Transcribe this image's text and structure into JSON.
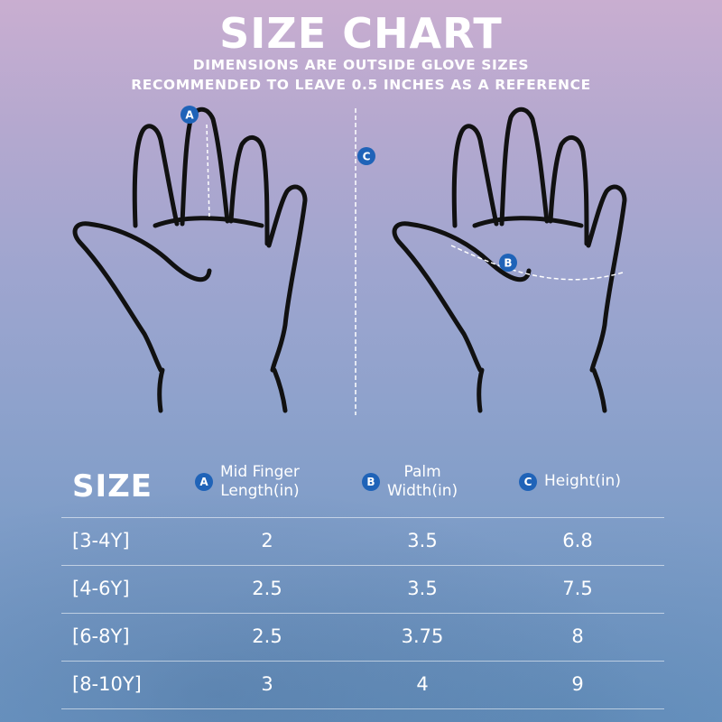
{
  "header": {
    "title": "SIZE CHART",
    "subtitle_line1": "DIMENSIONS ARE OUTSIDE GLOVE SIZES",
    "subtitle_line2": "RECOMMENDED TO LEAVE 0.5 INCHES AS A REFERENCE"
  },
  "illustration": {
    "badge_a": "A",
    "badge_b": "B",
    "badge_c": "C",
    "badge_color": "#1f63b8"
  },
  "table": {
    "size_header": "SIZE",
    "col_a_badge": "A",
    "col_a_line1": "Mid Finger",
    "col_a_line2": "Length(in)",
    "col_b_badge": "B",
    "col_b_line1": "Palm",
    "col_b_line2": "Width(in)",
    "col_c_badge": "C",
    "col_c_label": "Height(in)",
    "rows": [
      {
        "size": "[3-4Y]",
        "finger": "2",
        "palm": "3.5",
        "height": "6.8"
      },
      {
        "size": "[4-6Y]",
        "finger": "2.5",
        "palm": "3.5",
        "height": "7.5"
      },
      {
        "size": "[6-8Y]",
        "finger": "2.5",
        "palm": "3.75",
        "height": "8"
      },
      {
        "size": "[8-10Y]",
        "finger": "3",
        "palm": "4",
        "height": "9"
      }
    ]
  }
}
